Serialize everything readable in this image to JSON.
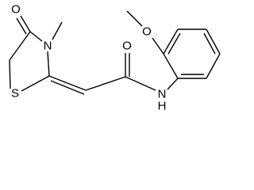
{
  "atoms": [
    {
      "label": "O"
    },
    {
      "label": "N"
    },
    {
      "label": "S"
    },
    {
      "label": "O"
    },
    {
      "label": "N"
    },
    {
      "label": "H"
    },
    {
      "label": "O"
    }
  ]
}
